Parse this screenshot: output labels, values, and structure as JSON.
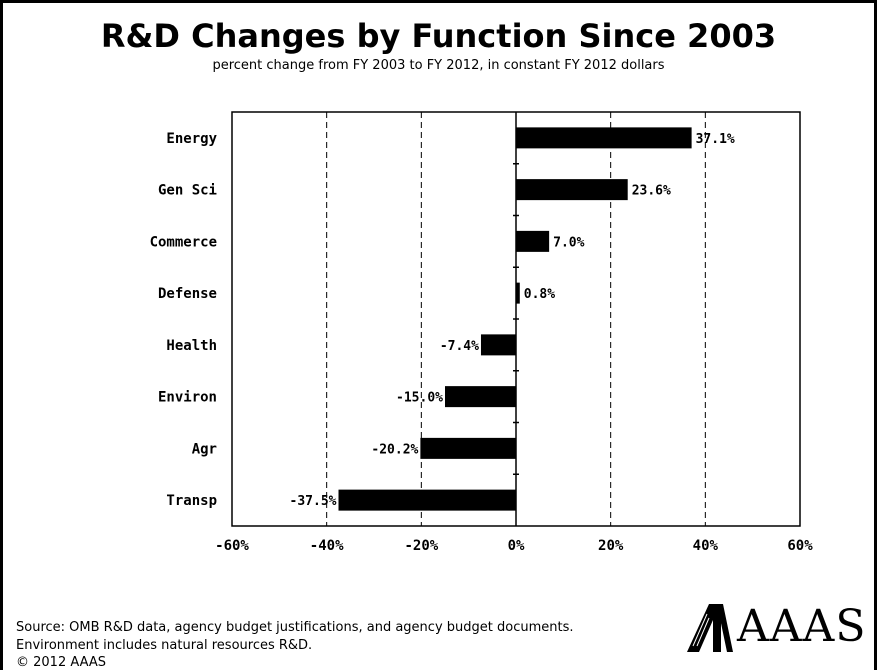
{
  "chart_data": {
    "type": "bar",
    "orientation": "horizontal",
    "title": "R&D Changes by Function Since 2003",
    "subtitle": "percent change from FY 2003 to FY 2012, in constant FY 2012 dollars",
    "categories": [
      "Energy",
      "Gen Sci",
      "Commerce",
      "Defense",
      "Health",
      "Environ",
      "Agr",
      "Transp"
    ],
    "values": [
      37.1,
      23.6,
      7.0,
      0.8,
      -7.4,
      -15.0,
      -20.2,
      -37.5
    ],
    "value_labels": [
      "37.1%",
      "23.6%",
      "7.0%",
      "0.8%",
      "-7.4%",
      "-15.0%",
      "-20.2%",
      "-37.5%"
    ],
    "xlim": [
      -60,
      60
    ],
    "x_ticks": [
      -60,
      -40,
      -20,
      0,
      20,
      40,
      60
    ],
    "x_tick_labels": [
      "-60%",
      "-40%",
      "-20%",
      "0%",
      "20%",
      "40%",
      "60%"
    ],
    "grid": "vertical dashed",
    "bar_color": "#000000"
  },
  "footer": {
    "source_line": "Source: OMB R&D data, agency budget justifications, and agency budget documents.",
    "note_line": "Environment includes natural resources R&D.",
    "copyright": "© 2012 AAAS"
  },
  "logo": {
    "text": "AAAS"
  }
}
